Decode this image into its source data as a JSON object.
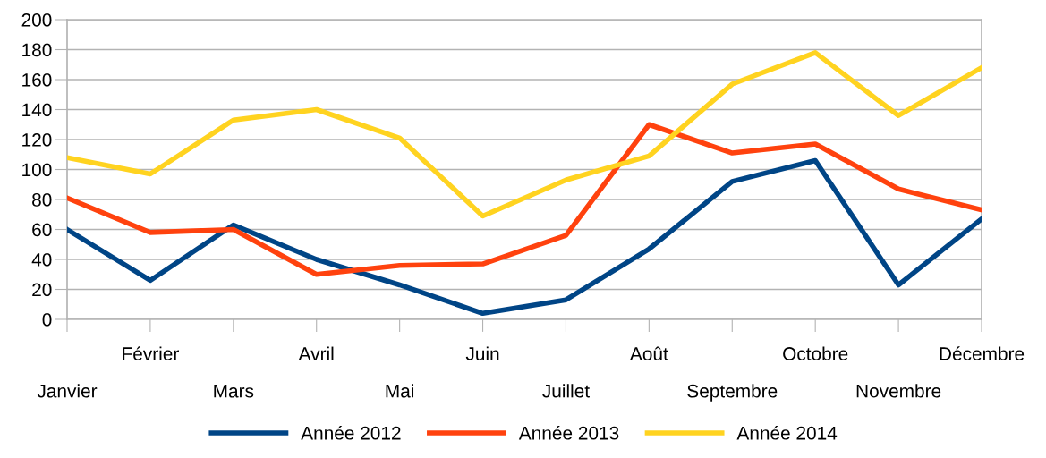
{
  "chart_data": {
    "type": "line",
    "categories": [
      "Janvier",
      "Février",
      "Mars",
      "Avril",
      "Mai",
      "Juin",
      "Juillet",
      "Août",
      "Septembre",
      "Octobre",
      "Novembre",
      "Décembre"
    ],
    "series": [
      {
        "name": "Année 2012",
        "color": "#004586",
        "values": [
          60,
          26,
          63,
          40,
          23,
          4,
          13,
          47,
          92,
          106,
          23,
          67
        ]
      },
      {
        "name": "Année 2013",
        "color": "#ff420e",
        "values": [
          81,
          58,
          60,
          30,
          36,
          37,
          56,
          130,
          111,
          117,
          87,
          73
        ]
      },
      {
        "name": "Année 2014",
        "color": "#ffd320",
        "values": [
          108,
          97,
          133,
          140,
          121,
          69,
          93,
          109,
          157,
          178,
          136,
          168
        ]
      }
    ],
    "ylim": [
      0,
      200
    ],
    "yticks": [
      0,
      20,
      40,
      60,
      80,
      100,
      120,
      140,
      160,
      180,
      200
    ],
    "grid": "y",
    "legend": "bottom",
    "marker": "none",
    "line_style": "solid"
  }
}
